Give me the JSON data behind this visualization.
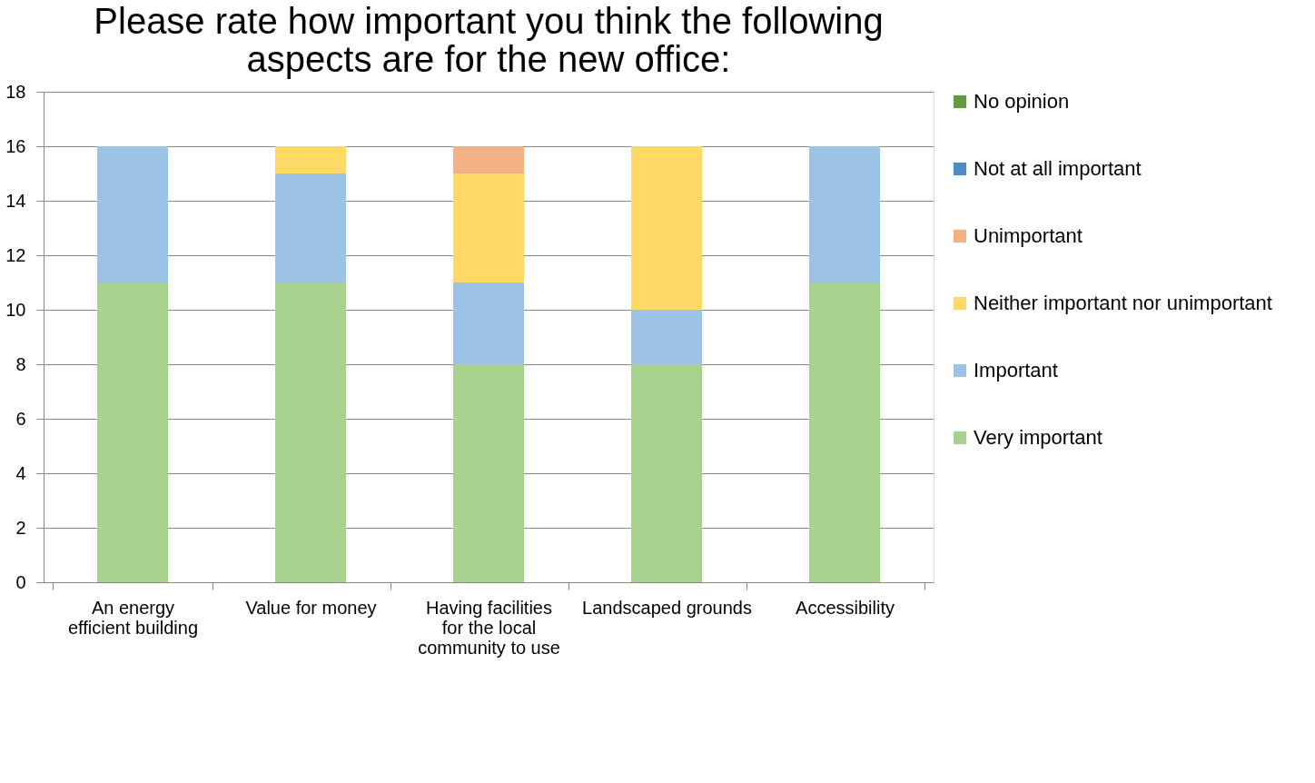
{
  "chart_data": {
    "type": "bar",
    "title": "Please rate how important you think the following aspects are for the new office:",
    "categories": [
      "An energy efficient building",
      "Value for money",
      "Having facilities for the local community to use",
      "Landscaped grounds",
      "Accessibility"
    ],
    "stacked": true,
    "series": [
      {
        "name": "Very important",
        "color": "#a9d18e",
        "values": [
          11,
          11,
          8,
          8,
          11
        ]
      },
      {
        "name": "Important",
        "color": "#9dc3e6",
        "values": [
          5,
          4,
          3,
          2,
          5
        ]
      },
      {
        "name": "Neither important nor unimportant",
        "color": "#ffd966",
        "values": [
          0,
          1,
          4,
          6,
          0
        ]
      },
      {
        "name": "Unimportant",
        "color": "#f4b183",
        "values": [
          0,
          0,
          1,
          0,
          0
        ]
      },
      {
        "name": "Not at all important",
        "color": "#4e8cc2",
        "values": [
          0,
          0,
          0,
          0,
          0
        ]
      },
      {
        "name": "No opinion",
        "color": "#5f9b3f",
        "values": [
          0,
          0,
          0,
          0,
          0
        ]
      }
    ],
    "ylim": [
      0,
      18
    ],
    "yticks": [
      0,
      2,
      4,
      6,
      8,
      10,
      12,
      14,
      16,
      18
    ],
    "grid": "y",
    "legend": "right"
  }
}
